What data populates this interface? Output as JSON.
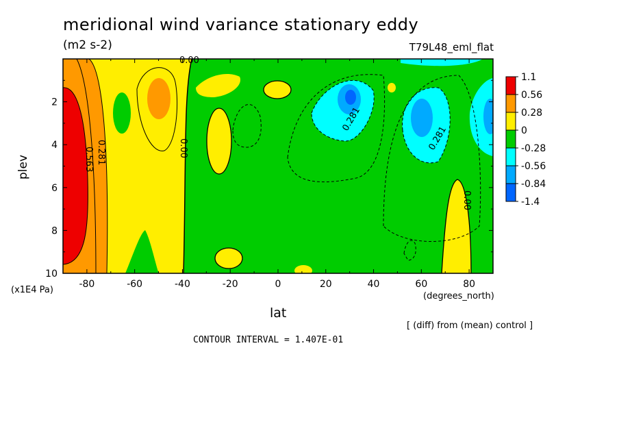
{
  "title": "meridional wind variance  stationary eddy",
  "units": "(m2 s-2)",
  "run_label": "T79L48_eml_flat",
  "note": "[ (diff) from (mean) control ]",
  "contour_interval": "CONTOUR INTERVAL = 1.407E-01",
  "chart_data": {
    "type": "heatmap",
    "xlabel": "lat",
    "xunit": "(degrees_north)",
    "ylabel": "plev",
    "yunit": "(x1E4 Pa)",
    "xlim": [
      -90,
      90
    ],
    "ylim": [
      0,
      10
    ],
    "x_ticks": [
      "-80",
      "-60",
      "-40",
      "-20",
      "0",
      "20",
      "40",
      "60",
      "80"
    ],
    "y_ticks": [
      "2",
      "4",
      "6",
      "8",
      "10"
    ],
    "colorbar": {
      "labels": [
        "1.1",
        "0.56",
        "0.28",
        "0",
        "-0.28",
        "-0.56",
        "-0.84",
        "-1.4"
      ],
      "colors": [
        "#ee0000",
        "#ff9900",
        "#ffee00",
        "#00cc00",
        "#00ffff",
        "#00aaff",
        "#0066ff"
      ]
    },
    "contour_labels": [
      "0.00",
      "0.281",
      "0.563",
      "0.00",
      "0.281",
      "0.281",
      "0.00"
    ]
  }
}
